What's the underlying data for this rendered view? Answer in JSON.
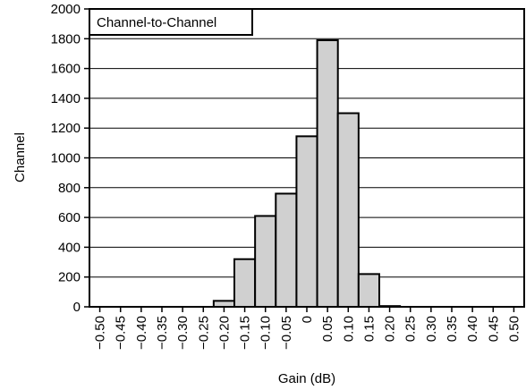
{
  "chart_data": {
    "type": "bar",
    "title": "Channel-to-Channel",
    "xlabel": "Gain (dB)",
    "ylabel": "Channel",
    "ylim": [
      0,
      2000
    ],
    "yticks": [
      "0",
      "200",
      "400",
      "600",
      "800",
      "1000",
      "1200",
      "1400",
      "1600",
      "1800",
      "2000"
    ],
    "categories": [
      "−0.50",
      "−0.45",
      "−0.40",
      "−0.35",
      "−0.30",
      "−0.25",
      "−0.20",
      "−0.15",
      "−0.10",
      "−0.05",
      "0",
      "0.05",
      "0.10",
      "0.15",
      "0.20",
      "0.25",
      "0.30",
      "0.35",
      "0.40",
      "0.45",
      "0.50"
    ],
    "bars": [
      {
        "from": -0.225,
        "to": -0.175,
        "value": 40
      },
      {
        "from": -0.175,
        "to": -0.125,
        "value": 320
      },
      {
        "from": -0.125,
        "to": -0.075,
        "value": 610
      },
      {
        "from": -0.075,
        "to": -0.025,
        "value": 760
      },
      {
        "from": -0.025,
        "to": 0.025,
        "value": 1145
      },
      {
        "from": 0.025,
        "to": 0.075,
        "value": 1790
      },
      {
        "from": 0.075,
        "to": 0.125,
        "value": 1300
      },
      {
        "from": 0.125,
        "to": 0.175,
        "value": 220
      },
      {
        "from": 0.175,
        "to": 0.225,
        "value": 5
      }
    ],
    "grid": true,
    "bar_color": "#d0d0d0"
  }
}
